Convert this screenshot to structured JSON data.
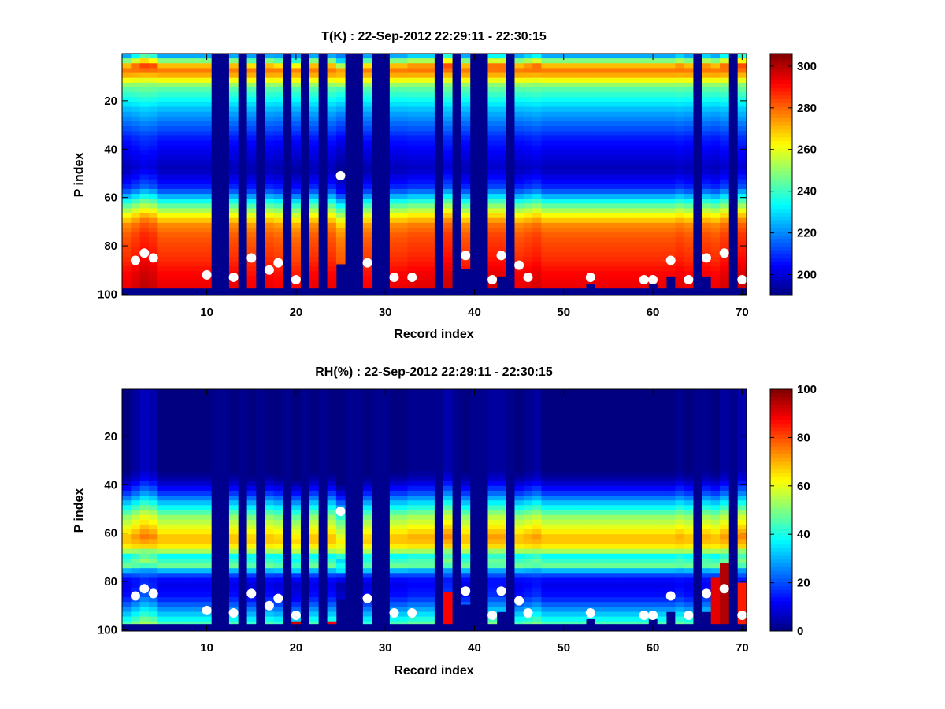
{
  "colors": {
    "background": "#ffffff",
    "fill": "#00008f",
    "marker": "#ffffff",
    "colormap": "jet"
  },
  "chart_data": [
    {
      "type": "heatmap",
      "title": "T(K) : 22-Sep-2012 22:29:11 - 22:30:15",
      "xlabel": "Record index",
      "ylabel": "P index",
      "xlim": [
        0.5,
        70.5
      ],
      "ylim": [
        100.5,
        0.5
      ],
      "y_reversed": true,
      "x_ticks": [
        "10",
        "20",
        "30",
        "40",
        "50",
        "60",
        "70"
      ],
      "y_ticks": [
        "20",
        "40",
        "60",
        "80",
        "100"
      ],
      "colorbar": {
        "min": 190,
        "max": 306,
        "ticks": [
          "200",
          "220",
          "240",
          "260",
          "280",
          "300"
        ]
      },
      "fill_value": 190,
      "profile_levels": [
        [
          1,
          224
        ],
        [
          4,
          260
        ],
        [
          6,
          280
        ],
        [
          9,
          272
        ],
        [
          14,
          245
        ],
        [
          24,
          224
        ],
        [
          36,
          206
        ],
        [
          48,
          196
        ],
        [
          56,
          210
        ],
        [
          62,
          240
        ],
        [
          67,
          262
        ],
        [
          71,
          276
        ],
        [
          76,
          282
        ],
        [
          84,
          286
        ],
        [
          92,
          292
        ],
        [
          98,
          294
        ]
      ],
      "column_offsets": [
        0,
        2,
        4,
        3,
        0,
        0,
        0,
        0,
        0,
        0,
        -1,
        0,
        0,
        0,
        -1,
        0,
        0,
        -1,
        0,
        -2,
        0,
        0,
        0,
        0,
        -4,
        0,
        0,
        -1,
        0,
        0,
        0,
        0,
        1,
        1,
        1,
        0,
        3,
        1,
        0,
        0,
        0,
        2,
        2,
        -1,
        0,
        1,
        2,
        0,
        0,
        0,
        0,
        0,
        0,
        0,
        0,
        0,
        0,
        0,
        0,
        0,
        0,
        0,
        1,
        0,
        0,
        1,
        0,
        2,
        0,
        3
      ],
      "missing_records": [
        11,
        12,
        14,
        16,
        19,
        21,
        23,
        26,
        27,
        29,
        30,
        36,
        38,
        40,
        41,
        44,
        65,
        69
      ],
      "bottom_levels": [
        97,
        97,
        97,
        97,
        97,
        97,
        97,
        97,
        97,
        97,
        100,
        100,
        97,
        100,
        97,
        100,
        97,
        97,
        100,
        97,
        100,
        97,
        100,
        97,
        87,
        100,
        100,
        97,
        100,
        100,
        97,
        97,
        97,
        97,
        97,
        100,
        97,
        100,
        89,
        100,
        100,
        97,
        92,
        100,
        97,
        97,
        97,
        97,
        97,
        97,
        97,
        97,
        95,
        97,
        97,
        97,
        97,
        97,
        97,
        95,
        97,
        92,
        97,
        97,
        100,
        92,
        97,
        97,
        100,
        97
      ],
      "markers": [
        [
          2,
          86
        ],
        [
          3,
          83
        ],
        [
          4,
          85
        ],
        [
          10,
          92
        ],
        [
          13,
          93
        ],
        [
          15,
          85
        ],
        [
          17,
          90
        ],
        [
          18,
          87
        ],
        [
          20,
          94
        ],
        [
          25,
          51
        ],
        [
          28,
          87
        ],
        [
          31,
          93
        ],
        [
          33,
          93
        ],
        [
          39,
          84
        ],
        [
          42,
          94
        ],
        [
          43,
          84
        ],
        [
          45,
          88
        ],
        [
          46,
          93
        ],
        [
          53,
          93
        ],
        [
          59,
          94
        ],
        [
          60,
          94
        ],
        [
          62,
          86
        ],
        [
          64,
          94
        ],
        [
          66,
          85
        ],
        [
          68,
          83
        ],
        [
          70,
          94
        ]
      ]
    },
    {
      "type": "heatmap",
      "title": "RH(%) : 22-Sep-2012 22:29:11 - 22:30:15",
      "xlabel": "Record index",
      "ylabel": "P index",
      "xlim": [
        0.5,
        70.5
      ],
      "ylim": [
        100.5,
        0.5
      ],
      "y_reversed": true,
      "x_ticks": [
        "10",
        "20",
        "30",
        "40",
        "50",
        "60",
        "70"
      ],
      "y_ticks": [
        "20",
        "40",
        "60",
        "80",
        "100"
      ],
      "colorbar": {
        "min": 0,
        "max": 100,
        "ticks": [
          "0",
          "20",
          "40",
          "60",
          "80",
          "100"
        ]
      },
      "fill_value": 0,
      "profile_levels": [
        [
          1,
          0
        ],
        [
          34,
          0
        ],
        [
          38,
          5
        ],
        [
          43,
          18
        ],
        [
          48,
          35
        ],
        [
          53,
          52
        ],
        [
          58,
          62
        ],
        [
          62,
          70
        ],
        [
          66,
          62
        ],
        [
          69,
          38
        ],
        [
          73,
          48
        ],
        [
          76,
          22
        ],
        [
          80,
          10
        ],
        [
          86,
          14
        ],
        [
          90,
          24
        ],
        [
          94,
          35
        ],
        [
          98,
          48
        ]
      ],
      "column_offsets": [
        0,
        2,
        4,
        3,
        0,
        0,
        0,
        0,
        0,
        0,
        -1,
        0,
        0,
        0,
        -1,
        0,
        0,
        -1,
        0,
        -2,
        0,
        0,
        0,
        0,
        -4,
        0,
        0,
        -1,
        0,
        0,
        0,
        0,
        1,
        1,
        1,
        0,
        3,
        1,
        0,
        0,
        0,
        2,
        2,
        -1,
        0,
        1,
        2,
        0,
        0,
        0,
        0,
        0,
        0,
        0,
        0,
        0,
        0,
        0,
        0,
        0,
        0,
        0,
        1,
        0,
        0,
        1,
        0,
        2,
        0,
        3
      ],
      "missing_records": [
        11,
        12,
        14,
        16,
        19,
        21,
        23,
        26,
        27,
        29,
        30,
        36,
        38,
        40,
        41,
        44,
        65,
        69
      ],
      "bottom_levels": [
        97,
        97,
        97,
        97,
        97,
        97,
        97,
        97,
        97,
        97,
        100,
        100,
        97,
        100,
        97,
        100,
        97,
        97,
        100,
        97,
        100,
        97,
        100,
        97,
        87,
        100,
        100,
        97,
        100,
        100,
        97,
        97,
        97,
        97,
        97,
        100,
        97,
        100,
        89,
        100,
        100,
        97,
        92,
        100,
        97,
        97,
        97,
        97,
        97,
        97,
        97,
        97,
        95,
        97,
        97,
        97,
        97,
        97,
        97,
        95,
        97,
        92,
        97,
        97,
        100,
        92,
        97,
        97,
        100,
        97
      ],
      "hot_cells": [
        [
          20,
          96,
          100,
          92
        ],
        [
          24,
          96,
          100,
          88
        ],
        [
          37,
          85,
          100,
          88
        ],
        [
          67,
          78,
          100,
          90
        ],
        [
          68,
          72,
          100,
          95
        ],
        [
          70,
          80,
          100,
          85
        ]
      ],
      "markers": [
        [
          2,
          86
        ],
        [
          3,
          83
        ],
        [
          4,
          85
        ],
        [
          10,
          92
        ],
        [
          13,
          93
        ],
        [
          15,
          85
        ],
        [
          17,
          90
        ],
        [
          18,
          87
        ],
        [
          20,
          94
        ],
        [
          25,
          51
        ],
        [
          28,
          87
        ],
        [
          31,
          93
        ],
        [
          33,
          93
        ],
        [
          39,
          84
        ],
        [
          42,
          94
        ],
        [
          43,
          84
        ],
        [
          45,
          88
        ],
        [
          46,
          93
        ],
        [
          53,
          93
        ],
        [
          59,
          94
        ],
        [
          60,
          94
        ],
        [
          62,
          86
        ],
        [
          64,
          94
        ],
        [
          66,
          85
        ],
        [
          68,
          83
        ],
        [
          70,
          94
        ]
      ]
    }
  ]
}
